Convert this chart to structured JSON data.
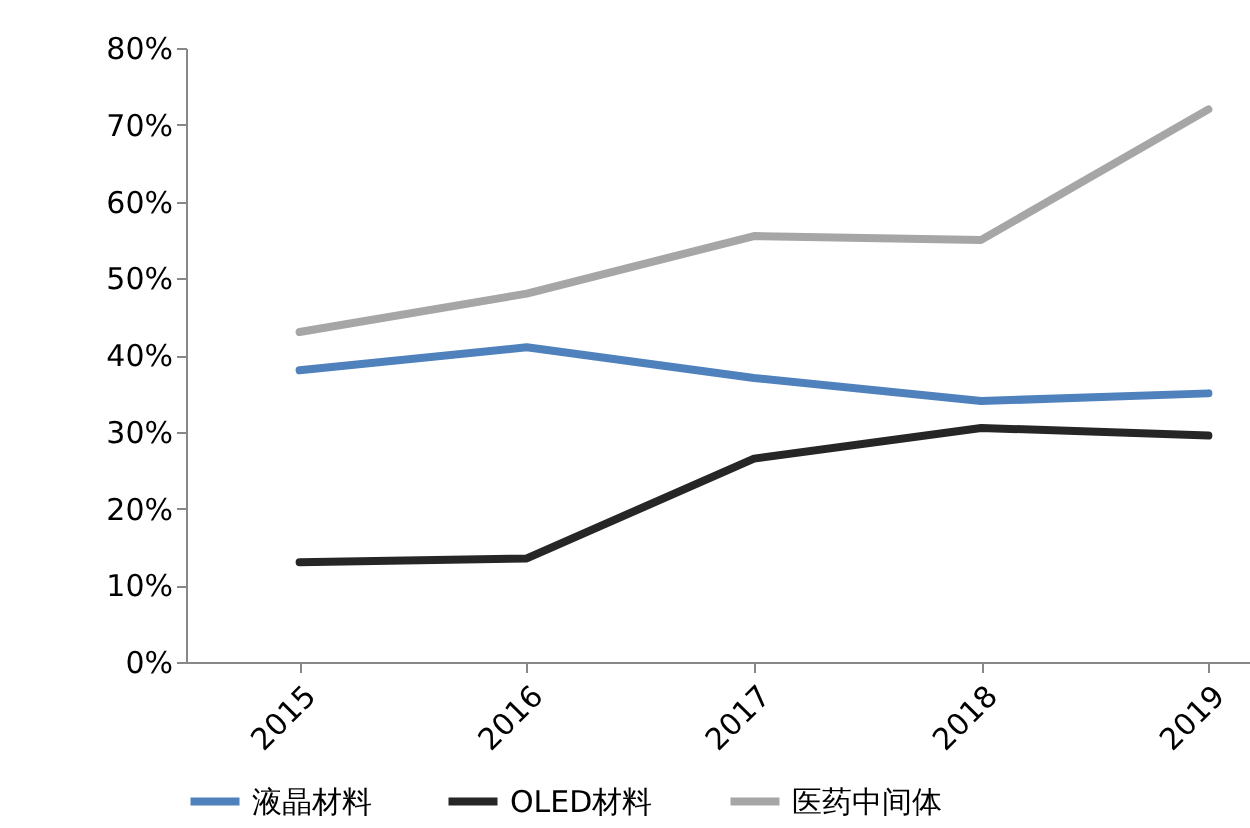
{
  "chart_data": {
    "type": "line",
    "categories": [
      "2015",
      "2016",
      "2017",
      "2018",
      "2019"
    ],
    "series": [
      {
        "name": "液晶材料",
        "color": "#4f81bd",
        "values": [
          38,
          41,
          37,
          34,
          35
        ]
      },
      {
        "name": "OLED材料",
        "color": "#262626",
        "values": [
          13,
          13.5,
          26.5,
          30.5,
          29.5
        ]
      },
      {
        "name": "医药中间体",
        "color": "#a6a6a6",
        "values": [
          43,
          48,
          55.5,
          55,
          72
        ]
      }
    ],
    "ylim": [
      0,
      80
    ],
    "yticks": [
      {
        "value": 0,
        "label": "0%"
      },
      {
        "value": 10,
        "label": "10%"
      },
      {
        "value": 20,
        "label": "20%"
      },
      {
        "value": 30,
        "label": "30%"
      },
      {
        "value": 40,
        "label": "40%"
      },
      {
        "value": 50,
        "label": "50%"
      },
      {
        "value": 60,
        "label": "60%"
      },
      {
        "value": 70,
        "label": "70%"
      },
      {
        "value": 80,
        "label": "80%"
      }
    ],
    "legend": "bottom",
    "grid": false,
    "marker": "none",
    "line_style": "solid"
  }
}
